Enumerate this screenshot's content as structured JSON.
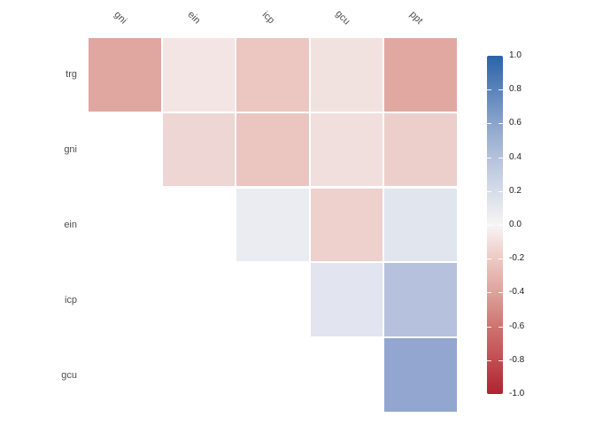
{
  "chart_data": {
    "type": "heatmap",
    "title": "",
    "description": "Upper-triangular correlation matrix heatmap with diverging red-white-blue color scale",
    "variables": [
      "trg",
      "gni",
      "ein",
      "icp",
      "gcu",
      "ppt"
    ],
    "row_labels": [
      "trg",
      "gni",
      "ein",
      "icp",
      "gcu"
    ],
    "col_labels": [
      "gni",
      "ein",
      "icp",
      "gcu",
      "ppt"
    ],
    "triangle": "upper",
    "legend_position": "right",
    "value_range": [
      -1,
      1
    ],
    "cells": [
      {
        "row": "trg",
        "col": "gni",
        "value": -0.4,
        "color": "#e0a6a0"
      },
      {
        "row": "trg",
        "col": "ein",
        "value": -0.07,
        "color": "#f2e5e3"
      },
      {
        "row": "trg",
        "col": "icp",
        "value": -0.22,
        "color": "#ecc6c1"
      },
      {
        "row": "trg",
        "col": "gcu",
        "value": -0.08,
        "color": "#f2e2df"
      },
      {
        "row": "trg",
        "col": "ppt",
        "value": -0.39,
        "color": "#e1a8a2"
      },
      {
        "row": "gni",
        "col": "ein",
        "value": -0.14,
        "color": "#edd6d3"
      },
      {
        "row": "gni",
        "col": "icp",
        "value": -0.22,
        "color": "#ebc6c1"
      },
      {
        "row": "gni",
        "col": "gcu",
        "value": -0.1,
        "color": "#f0dfdc"
      },
      {
        "row": "gni",
        "col": "ppt",
        "value": -0.17,
        "color": "#eccfcb"
      },
      {
        "row": "ein",
        "col": "icp",
        "value": 0.04,
        "color": "#eaecf1"
      },
      {
        "row": "ein",
        "col": "gcu",
        "value": -0.16,
        "color": "#eed0cc"
      },
      {
        "row": "ein",
        "col": "ppt",
        "value": 0.09,
        "color": "#e1e5ee"
      },
      {
        "row": "icp",
        "col": "gcu",
        "value": 0.09,
        "color": "#e2e5ef"
      },
      {
        "row": "icp",
        "col": "ppt",
        "value": 0.33,
        "color": "#b5c1dd"
      },
      {
        "row": "gcu",
        "col": "ppt",
        "value": 0.5,
        "color": "#92a6d0"
      }
    ],
    "colorbar": {
      "min": -1,
      "max": 1,
      "tick_labels": [
        "1.0",
        "0.8",
        "0.6",
        "0.4",
        "0.2",
        "0.0",
        "-0.2",
        "-0.4",
        "-0.6",
        "-0.8",
        "-1.0"
      ],
      "tick_values": [
        1.0,
        0.8,
        0.6,
        0.4,
        0.2,
        0.0,
        -0.2,
        -0.4,
        -0.6,
        -0.8,
        -1.0
      ],
      "inner_tick_values": [
        0.8,
        0.6,
        0.4,
        0.2,
        0.0,
        -0.2,
        -0.4,
        -0.6,
        -0.8
      ],
      "gradient_stops": [
        {
          "v": 1.0,
          "c": "#2a63a9"
        },
        {
          "v": 0.8,
          "c": "#5a83ba"
        },
        {
          "v": 0.6,
          "c": "#8ba4cc"
        },
        {
          "v": 0.4,
          "c": "#b3c1dc"
        },
        {
          "v": 0.2,
          "c": "#d6dce9"
        },
        {
          "v": 0.0,
          "c": "#f7f5f5"
        },
        {
          "v": -0.2,
          "c": "#eec9c4"
        },
        {
          "v": -0.4,
          "c": "#dda29c"
        },
        {
          "v": -0.6,
          "c": "#cf7470"
        },
        {
          "v": -0.8,
          "c": "#c34b51"
        },
        {
          "v": -1.0,
          "c": "#ae2330"
        }
      ]
    }
  },
  "colors": {
    "background": "#ffffff",
    "axis_label": "#4d4d4d",
    "legend_label": "#1a1a1a",
    "tick_mark": "#ffffff"
  }
}
